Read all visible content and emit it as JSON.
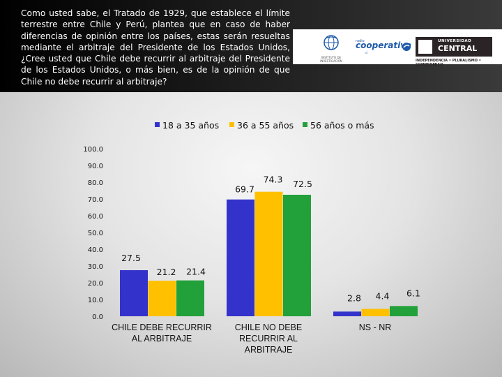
{
  "header": {
    "question": "Como usted sabe, el Tratado de 1929, que establece el límite terrestre entre Chile y Perú, plantea que en caso de haber diferencias de opinión entre los países, estas serán resueltas mediante el arbitraje del Presidente de los Estados Unidos, ¿Cree usted que Chile debe recurrir al arbitraje del Presidente de los Estados Unidos, o más bien, es de la opinión de que Chile no debe recurrir al arbitraje?"
  },
  "logos": {
    "institute_label": "INSTITUTO DE INVESTIGACIÓN",
    "cooperativa_small": "radio",
    "cooperativa": "cooperativa",
    "cooperativa_sub": "cl",
    "university_line1": "UNIVERSIDAD",
    "university_line2": "CENTRAL",
    "university_motto": "INDEPENDENCIA • PLURALISMO • COMPROMISO"
  },
  "colors": {
    "series_1": "#3333cc",
    "series_2": "#ffc000",
    "series_3": "#22a03a"
  },
  "chart_data": {
    "type": "bar",
    "categories": [
      [
        "CHILE DEBE RECURRIR",
        "AL ARBITRAJE"
      ],
      [
        "CHILE NO DEBE",
        "RECURRIR AL",
        "ARBITRAJE"
      ],
      [
        "NS - NR"
      ]
    ],
    "series": [
      {
        "name": "18 a 35 años",
        "values": [
          27.5,
          69.7,
          2.8
        ]
      },
      {
        "name": "36 a 55 años",
        "values": [
          21.2,
          74.3,
          4.4
        ]
      },
      {
        "name": "56 años o más",
        "values": [
          21.4,
          72.5,
          6.1
        ]
      }
    ],
    "y_ticks": [
      "0.0",
      "10.0",
      "20.0",
      "30.0",
      "40.0",
      "50.0",
      "60.0",
      "70.0",
      "80.0",
      "90.0",
      "100.0"
    ],
    "ylim": [
      0,
      100
    ],
    "legend_position": "top",
    "grid": false
  }
}
